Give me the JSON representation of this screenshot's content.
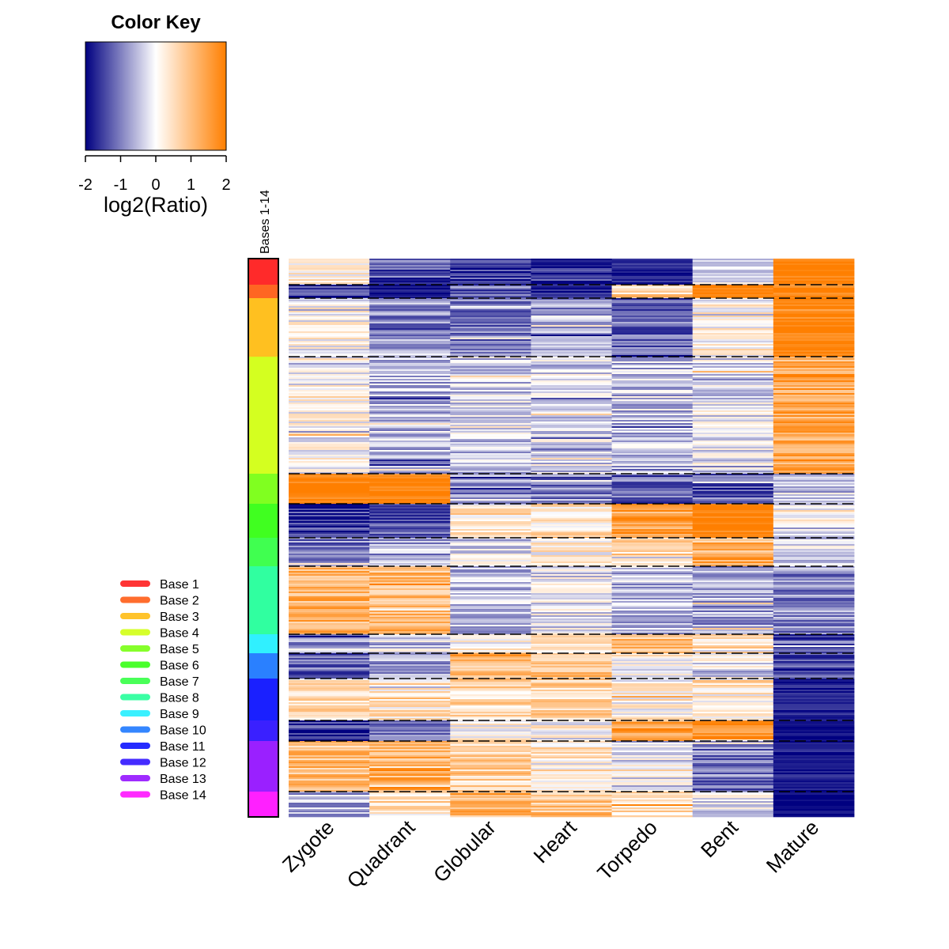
{
  "chart_data": {
    "type": "heatmap",
    "color_key": {
      "title": "Color Key",
      "label": "log2(Ratio)",
      "range": [
        -2,
        2
      ],
      "ticks": [
        "-2",
        "-1",
        "0",
        "1",
        "2"
      ],
      "colors": {
        "low": "#000080",
        "mid": "#ffffff",
        "high": "#ff7f00"
      }
    },
    "side_bar_label": "Bases 1-14",
    "columns": [
      "Zygote",
      "Quadrant",
      "Globular",
      "Heart",
      "Torpedo",
      "Bent",
      "Mature"
    ],
    "clusters": [
      {
        "name": "Base 1",
        "color": "#ff2a2a",
        "rows": 33,
        "values": [
          0.2,
          -1.3,
          -1.6,
          -1.6,
          -1.7,
          -0.3,
          1.9
        ]
      },
      {
        "name": "Base 2",
        "color": "#ff6622",
        "rows": 17,
        "values": [
          -1.5,
          -1.8,
          -1.4,
          -1.7,
          0.6,
          1.9,
          1.9
        ]
      },
      {
        "name": "Base 3",
        "color": "#ffc020",
        "rows": 74,
        "values": [
          0.1,
          -0.8,
          -1.1,
          -0.8,
          -1.1,
          0.2,
          1.9
        ]
      },
      {
        "name": "Base 4",
        "color": "#d4ff20",
        "rows": 148,
        "values": [
          0.05,
          -0.5,
          -0.4,
          -0.3,
          -0.5,
          -0.2,
          1.4
        ]
      },
      {
        "name": "Base 5",
        "color": "#80ff20",
        "rows": 38,
        "values": [
          1.9,
          1.9,
          -0.9,
          -1.0,
          -1.2,
          -1.2,
          -0.7
        ]
      },
      {
        "name": "Base 6",
        "color": "#40ff20",
        "rows": 43,
        "values": [
          -1.6,
          -1.3,
          0.2,
          0.4,
          1.4,
          1.9,
          -0.3
        ]
      },
      {
        "name": "Base 7",
        "color": "#40ff50",
        "rows": 36,
        "values": [
          -1.0,
          -0.7,
          -0.3,
          0.1,
          0.6,
          1.2,
          -0.3
        ]
      },
      {
        "name": "Base 8",
        "color": "#30ffa0",
        "rows": 86,
        "values": [
          1.2,
          1.1,
          -0.5,
          -0.2,
          -0.5,
          -0.7,
          -0.9
        ]
      },
      {
        "name": "Base 9",
        "color": "#30f0ff",
        "rows": 24,
        "values": [
          -0.8,
          -0.3,
          0.2,
          0.5,
          1.0,
          0.5,
          -1.3
        ]
      },
      {
        "name": "Base 10",
        "color": "#2a80ff",
        "rows": 32,
        "values": [
          -1.2,
          -0.6,
          1.1,
          1.0,
          0.2,
          -0.2,
          -1.4
        ]
      },
      {
        "name": "Base 11",
        "color": "#1a20ff",
        "rows": 53,
        "values": [
          0.5,
          0.4,
          0.6,
          0.6,
          0.2,
          0.3,
          -1.7
        ]
      },
      {
        "name": "Base 12",
        "color": "#3a20ff",
        "rows": 26,
        "values": [
          -1.5,
          -0.9,
          0.2,
          0.1,
          1.5,
          1.5,
          -1.9
        ]
      },
      {
        "name": "Base 13",
        "color": "#9a20ff",
        "rows": 64,
        "values": [
          1.0,
          1.2,
          0.7,
          0.4,
          -0.2,
          -1.0,
          -1.8
        ]
      },
      {
        "name": "Base 14",
        "color": "#ff20ff",
        "rows": 32,
        "values": [
          -0.6,
          0.4,
          1.2,
          1.0,
          0.6,
          -0.2,
          -2.0
        ]
      }
    ]
  }
}
